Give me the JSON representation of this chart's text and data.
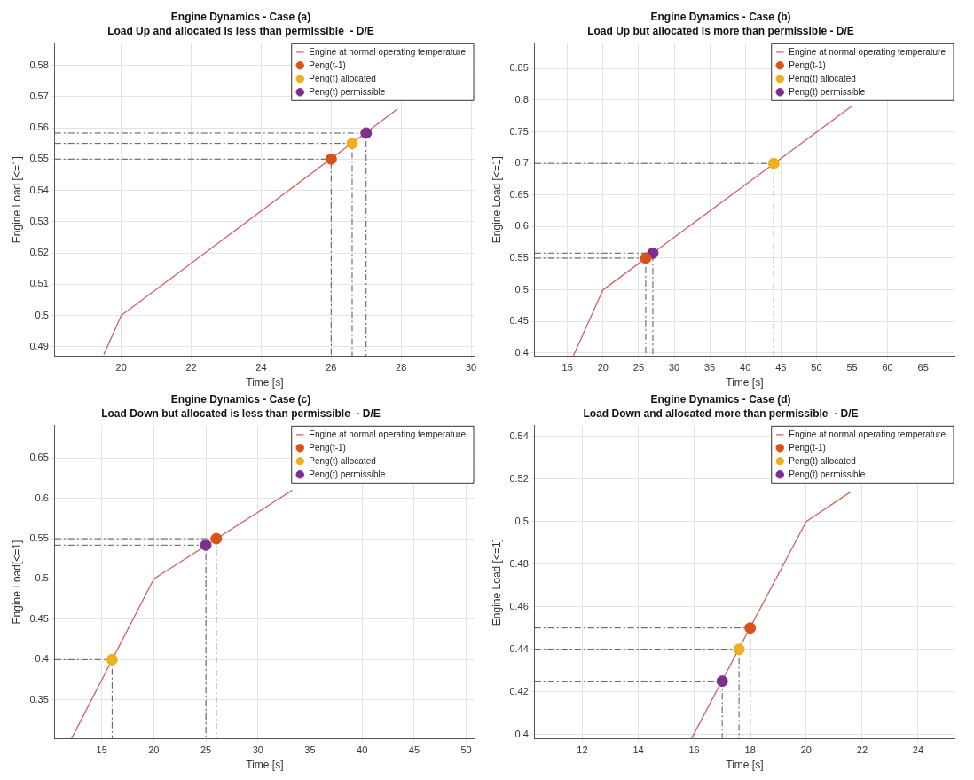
{
  "chart_data": [
    {
      "type": "line",
      "title": "Engine Dynamics - Case (a)",
      "subtitle": "Load Up and allocated is less than permissible  - D/E",
      "xlabel": "Time [s]",
      "ylabel": "Engine Load [<=1]",
      "xlim": [
        18.1,
        30.1
      ],
      "ylim": [
        0.487,
        0.587
      ],
      "xticks": [
        20,
        22,
        24,
        26,
        28,
        30
      ],
      "yticks": [
        0.49,
        0.5,
        0.51,
        0.52,
        0.53,
        0.54,
        0.55,
        0.56,
        0.57,
        0.58
      ],
      "grid": true,
      "legend": "top right",
      "series": [
        {
          "type": "line",
          "name": "Engine at normal operating temperature",
          "color": "#d25f5f",
          "marker": "none",
          "x": [
            19.5,
            20,
            27.9
          ],
          "values": [
            0.4875,
            0.5,
            0.566
          ]
        },
        {
          "type": "scatter",
          "name": "Peng(t-1)",
          "color": "#d95319",
          "marker": "circle",
          "x": [
            26
          ],
          "values": [
            0.55
          ]
        },
        {
          "type": "scatter",
          "name": "Peng(t) allocated",
          "color": "#edb120",
          "marker": "circle",
          "x": [
            26.6
          ],
          "values": [
            0.555
          ]
        },
        {
          "type": "scatter",
          "name": "Peng(t) permissible",
          "color": "#7e2f8e",
          "marker": "circle",
          "x": [
            27
          ],
          "values": [
            0.5583
          ]
        },
        {
          "type": "line",
          "color": "#555555",
          "line_style": "dashed",
          "marker": "none",
          "x": [
            18.1,
            26,
            26
          ],
          "values": [
            0.55,
            0.55,
            0.487
          ]
        },
        {
          "type": "line",
          "color": "#555555",
          "line_style": "dashed",
          "marker": "none",
          "x": [
            18.1,
            26.6,
            26.6
          ],
          "values": [
            0.555,
            0.555,
            0.487
          ]
        },
        {
          "type": "line",
          "color": "#555555",
          "line_style": "dashed",
          "marker": "none",
          "x": [
            18.1,
            27,
            27
          ],
          "values": [
            0.5583,
            0.5583,
            0.487
          ]
        }
      ]
    },
    {
      "type": "line",
      "title": "Engine Dynamics - Case (b)",
      "subtitle": "Load Up but allocated is more than permissible - D/E",
      "xlabel": "Time [s]",
      "ylabel": "Engine Load [<=1]",
      "xlim": [
        10.4,
        69.4
      ],
      "ylim": [
        0.395,
        0.89
      ],
      "xticks": [
        15,
        20,
        25,
        30,
        35,
        40,
        45,
        50,
        55,
        60,
        65
      ],
      "yticks": [
        0.4,
        0.45,
        0.5,
        0.55,
        0.6,
        0.65,
        0.7,
        0.75,
        0.8,
        0.85
      ],
      "grid": true,
      "legend": "top right",
      "series": [
        {
          "type": "line",
          "name": "Engine at normal operating temperature",
          "color": "#d25f5f",
          "marker": "none",
          "x": [
            15.8,
            20,
            54.9
          ],
          "values": [
            0.395,
            0.5,
            0.79
          ]
        },
        {
          "type": "scatter",
          "name": "Peng(t-1)",
          "color": "#d95319",
          "marker": "circle",
          "x": [
            26
          ],
          "values": [
            0.55
          ]
        },
        {
          "type": "scatter",
          "name": "Peng(t) allocated",
          "color": "#edb120",
          "marker": "circle",
          "x": [
            44
          ],
          "values": [
            0.7
          ]
        },
        {
          "type": "scatter",
          "name": "Peng(t) permissible",
          "color": "#7e2f8e",
          "marker": "circle",
          "x": [
            27
          ],
          "values": [
            0.558
          ]
        },
        {
          "type": "line",
          "color": "#555555",
          "line_style": "dashed",
          "marker": "none",
          "x": [
            10.4,
            26,
            26
          ],
          "values": [
            0.55,
            0.55,
            0.395
          ]
        },
        {
          "type": "line",
          "color": "#555555",
          "line_style": "dashed",
          "marker": "none",
          "x": [
            10.4,
            44,
            44
          ],
          "values": [
            0.7,
            0.7,
            0.395
          ]
        },
        {
          "type": "line",
          "color": "#555555",
          "line_style": "dashed",
          "marker": "none",
          "x": [
            10.4,
            27,
            27
          ],
          "values": [
            0.558,
            0.558,
            0.395
          ]
        }
      ]
    },
    {
      "type": "line",
      "title": "Engine Dynamics - Case (c)",
      "subtitle": "Load Down but allocated is less than permissible  - D/E",
      "xlabel": "Time [s]",
      "ylabel": "Engine Load[<=1]",
      "xlim": [
        10.5,
        50.8
      ],
      "ylim": [
        0.302,
        0.69
      ],
      "xticks": [
        15,
        20,
        25,
        30,
        35,
        40,
        45,
        50
      ],
      "yticks": [
        0.35,
        0.4,
        0.45,
        0.5,
        0.55,
        0.6,
        0.65
      ],
      "grid": true,
      "legend": "top right",
      "series": [
        {
          "type": "line",
          "name": "Engine at normal operating temperature",
          "color": "#d25f5f",
          "marker": "none",
          "x": [
            12.1,
            20,
            33.3
          ],
          "values": [
            0.302,
            0.5,
            0.61
          ]
        },
        {
          "type": "scatter",
          "name": "Peng(t-1)",
          "color": "#d95319",
          "marker": "circle",
          "x": [
            26
          ],
          "values": [
            0.55
          ]
        },
        {
          "type": "scatter",
          "name": "Peng(t) allocated",
          "color": "#edb120",
          "marker": "circle",
          "x": [
            16
          ],
          "values": [
            0.4
          ]
        },
        {
          "type": "scatter",
          "name": "Peng(t) permissible",
          "color": "#7e2f8e",
          "marker": "circle",
          "x": [
            25
          ],
          "values": [
            0.542
          ]
        },
        {
          "type": "line",
          "color": "#555555",
          "line_style": "dashed",
          "marker": "none",
          "x": [
            10.5,
            26,
            26
          ],
          "values": [
            0.55,
            0.55,
            0.302
          ]
        },
        {
          "type": "line",
          "color": "#555555",
          "line_style": "dashed",
          "marker": "none",
          "x": [
            10.5,
            16,
            16
          ],
          "values": [
            0.4,
            0.4,
            0.302
          ]
        },
        {
          "type": "line",
          "color": "#555555",
          "line_style": "dashed",
          "marker": "none",
          "x": [
            10.5,
            25,
            25
          ],
          "values": [
            0.542,
            0.542,
            0.302
          ]
        }
      ]
    },
    {
      "type": "line",
      "title": "Engine Dynamics - Case (d)",
      "subtitle": "Load Down and allocated more than permissible  - D/E",
      "xlabel": "Time [s]",
      "ylabel": "Engine Load [<=1]",
      "xlim": [
        10.3,
        25.3
      ],
      "ylim": [
        0.398,
        0.545
      ],
      "xticks": [
        12,
        14,
        16,
        18,
        20,
        22,
        24
      ],
      "yticks": [
        0.4,
        0.42,
        0.44,
        0.46,
        0.48,
        0.5,
        0.52,
        0.54
      ],
      "grid": true,
      "legend": "top right",
      "series": [
        {
          "type": "line",
          "name": "Engine at normal operating temperature",
          "color": "#d25f5f",
          "marker": "none",
          "x": [
            15.9,
            20,
            21.6
          ],
          "values": [
            0.398,
            0.5,
            0.514
          ]
        },
        {
          "type": "scatter",
          "name": "Peng(t-1)",
          "color": "#d95319",
          "marker": "circle",
          "x": [
            18
          ],
          "values": [
            0.45
          ]
        },
        {
          "type": "scatter",
          "name": "Peng(t) allocated",
          "color": "#edb120",
          "marker": "circle",
          "x": [
            17.6
          ],
          "values": [
            0.44
          ]
        },
        {
          "type": "scatter",
          "name": "Peng(t) permissible",
          "color": "#7e2f8e",
          "marker": "circle",
          "x": [
            17
          ],
          "values": [
            0.425
          ]
        },
        {
          "type": "line",
          "color": "#555555",
          "line_style": "dashed",
          "marker": "none",
          "x": [
            10.3,
            18,
            18
          ],
          "values": [
            0.45,
            0.45,
            0.398
          ]
        },
        {
          "type": "line",
          "color": "#555555",
          "line_style": "dashed",
          "marker": "none",
          "x": [
            10.3,
            17.6,
            17.6
          ],
          "values": [
            0.44,
            0.44,
            0.398
          ]
        },
        {
          "type": "line",
          "color": "#555555",
          "line_style": "dashed",
          "marker": "none",
          "x": [
            10.3,
            17,
            17
          ],
          "values": [
            0.425,
            0.425,
            0.398
          ]
        }
      ]
    }
  ]
}
